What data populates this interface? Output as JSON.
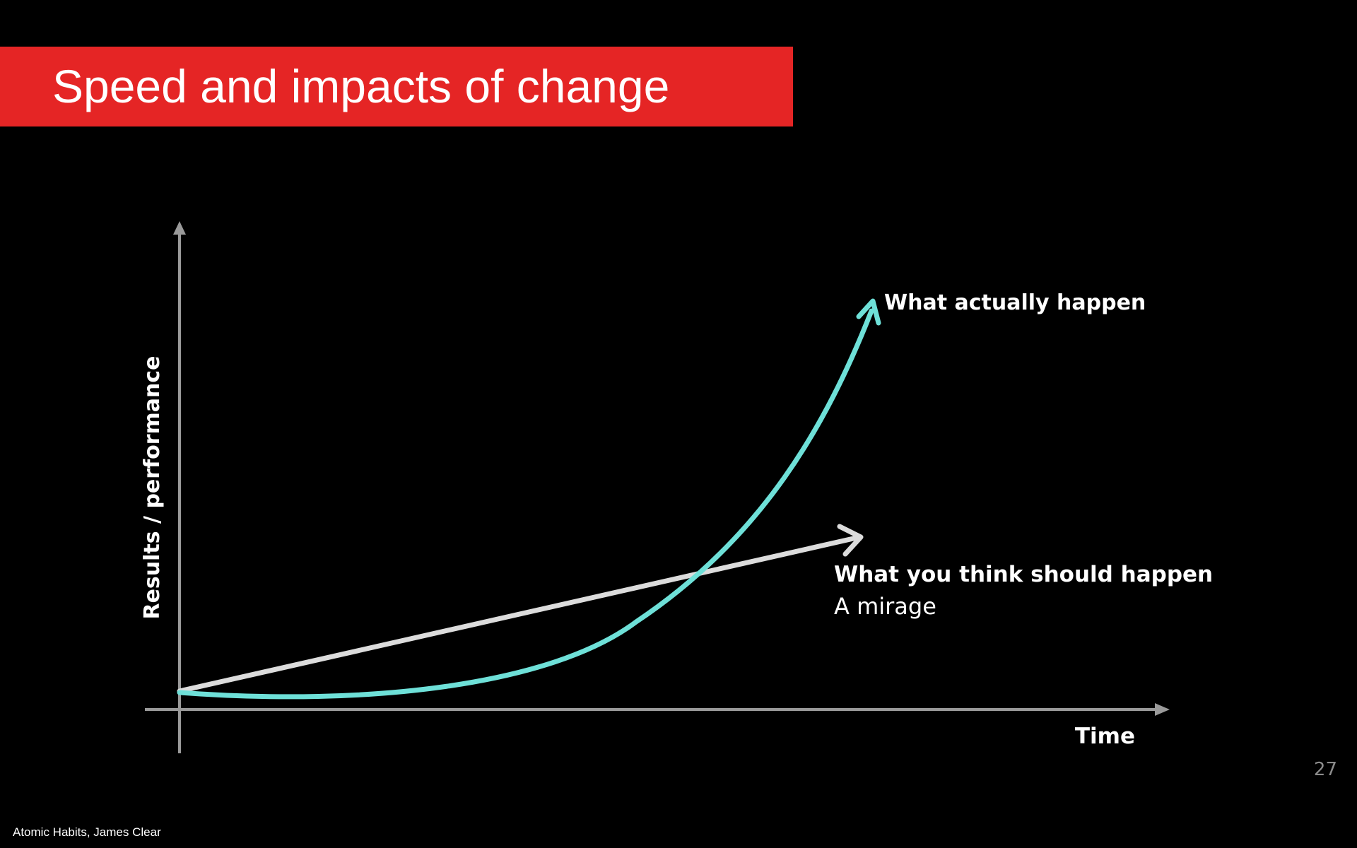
{
  "slide": {
    "title": "Speed and impacts of change",
    "page_number": "27",
    "source": "Atomic Habits, James Clear",
    "colors": {
      "background": "#000000",
      "title_bar": "#e52525",
      "actual_curve": "#6ee0d8",
      "expected_line": "#dcdcdc",
      "axes": "#9a9a9a",
      "text": "#ffffff"
    }
  },
  "diagram": {
    "y_axis_label": "Results / performance",
    "x_axis_label": "Time",
    "actual": {
      "label": "What actually happen",
      "shape": "exponential curve"
    },
    "expected": {
      "label": "What you think should happen",
      "sublabel": "A mirage",
      "shape": "straight line"
    }
  }
}
